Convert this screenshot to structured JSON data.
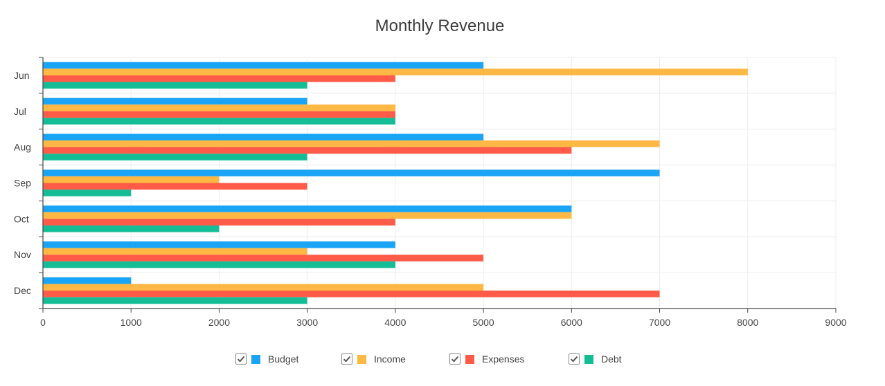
{
  "chart_data": {
    "type": "bar",
    "orientation": "horizontal",
    "title": "Monthly Revenue",
    "xlabel": "",
    "ylabel": "",
    "categories": [
      "Jun",
      "Jul",
      "Aug",
      "Sep",
      "Oct",
      "Nov",
      "Dec"
    ],
    "series": [
      {
        "name": "Budget",
        "color": "#1aa4f5",
        "values": [
          5000,
          3000,
          5000,
          7000,
          6000,
          4000,
          1000
        ]
      },
      {
        "name": "Income",
        "color": "#ffb843",
        "values": [
          8000,
          4000,
          7000,
          2000,
          6000,
          3000,
          5000
        ]
      },
      {
        "name": "Expenses",
        "color": "#ff5b48",
        "values": [
          4000,
          4000,
          6000,
          3000,
          4000,
          5000,
          7000
        ]
      },
      {
        "name": "Debt",
        "color": "#14bd96",
        "values": [
          3000,
          4000,
          3000,
          1000,
          2000,
          4000,
          3000
        ]
      }
    ],
    "xlim": [
      0,
      9000
    ],
    "x_ticks": [
      "0",
      "1000",
      "2000",
      "3000",
      "4000",
      "5000",
      "6000",
      "7000",
      "8000",
      "9000"
    ],
    "grid": true,
    "legend_position": "bottom-center"
  }
}
